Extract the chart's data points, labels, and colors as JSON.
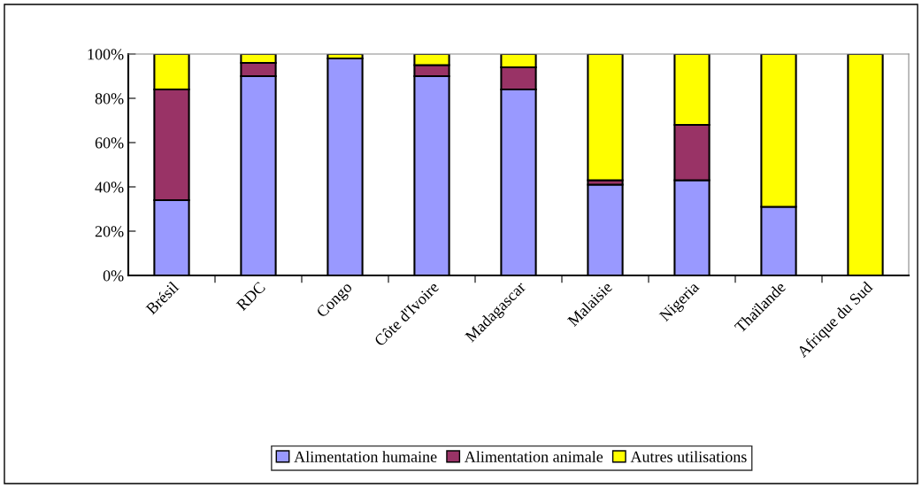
{
  "chart_data": {
    "type": "bar",
    "stacked": true,
    "categories": [
      "Brésil",
      "RDC",
      "Congo",
      "Côte d'Ivoire",
      "Madagascar",
      "Malaisie",
      "Nigeria",
      "Thaïlande",
      "Afrique du Sud"
    ],
    "series": [
      {
        "name": "Alimentation humaine",
        "color": "#9999ff",
        "values": [
          34,
          90,
          98,
          90,
          84,
          41,
          43,
          31,
          0
        ]
      },
      {
        "name": "Alimentation animale",
        "color": "#993366",
        "values": [
          50,
          6,
          null,
          5,
          10,
          2,
          25,
          0,
          0
        ]
      },
      {
        "name": "Autres utilisations",
        "color": "#ffff00",
        "values": [
          16,
          4,
          2,
          5,
          6,
          57,
          32,
          69,
          100
        ]
      }
    ],
    "ylim": [
      0,
      100
    ],
    "yticks": [
      {
        "value": 0,
        "label": "0%"
      },
      {
        "value": 20,
        "label": "20%"
      },
      {
        "value": 40,
        "label": "40%"
      },
      {
        "value": 60,
        "label": "60%"
      },
      {
        "value": 80,
        "label": "80%"
      },
      {
        "value": 100,
        "label": "100%"
      }
    ],
    "grid": false,
    "legend": "bottom"
  }
}
